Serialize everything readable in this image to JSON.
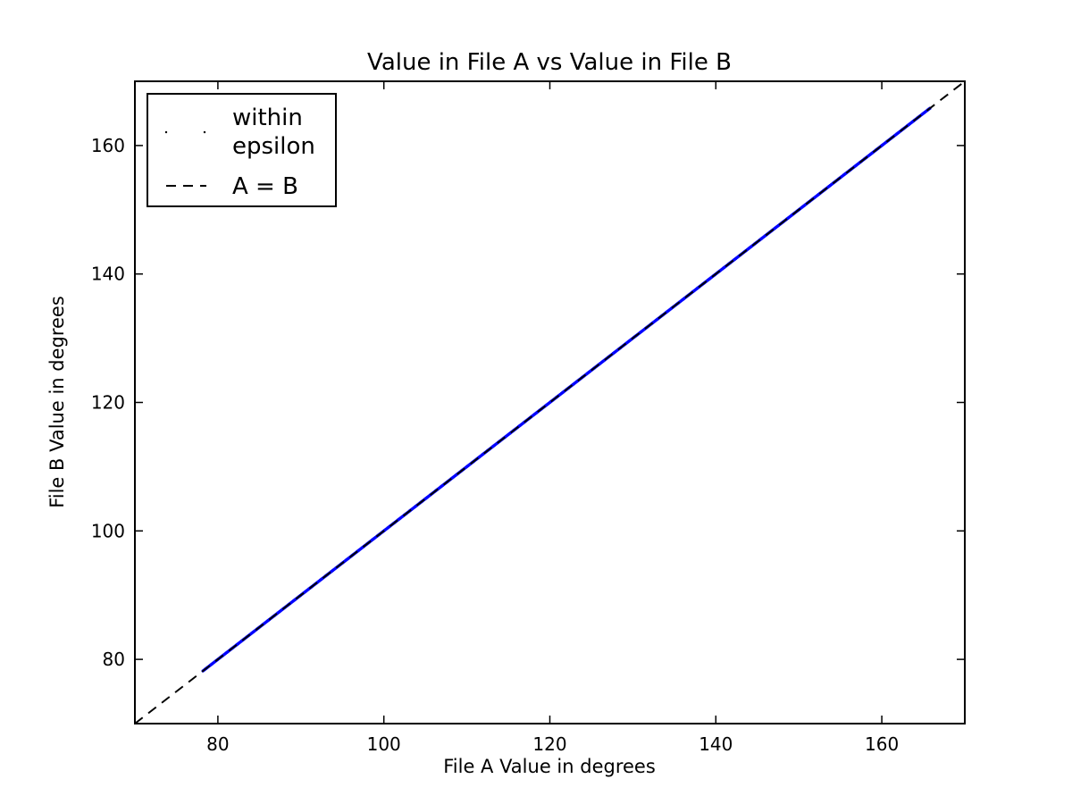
{
  "chart_data": {
    "type": "scatter",
    "title": "Value in File A vs Value in File B",
    "xlabel": "File A Value in degrees",
    "ylabel": "File B Value in degrees",
    "xlim": [
      70,
      170
    ],
    "ylim": [
      70,
      170
    ],
    "xticks": [
      80,
      100,
      120,
      140,
      160
    ],
    "yticks": [
      80,
      100,
      120,
      140,
      160
    ],
    "grid": false,
    "legend_position": "top-left",
    "series": [
      {
        "name": "within\nepsilon",
        "kind": "scatter",
        "color": "#0000ff",
        "x_range": [
          78.2,
          165.8
        ],
        "y_range": [
          78.2,
          165.8
        ]
      },
      {
        "name": "A = B",
        "kind": "line",
        "style": "dashed",
        "color": "#000000",
        "x": [
          70,
          170
        ],
        "y": [
          70,
          170
        ]
      }
    ]
  }
}
